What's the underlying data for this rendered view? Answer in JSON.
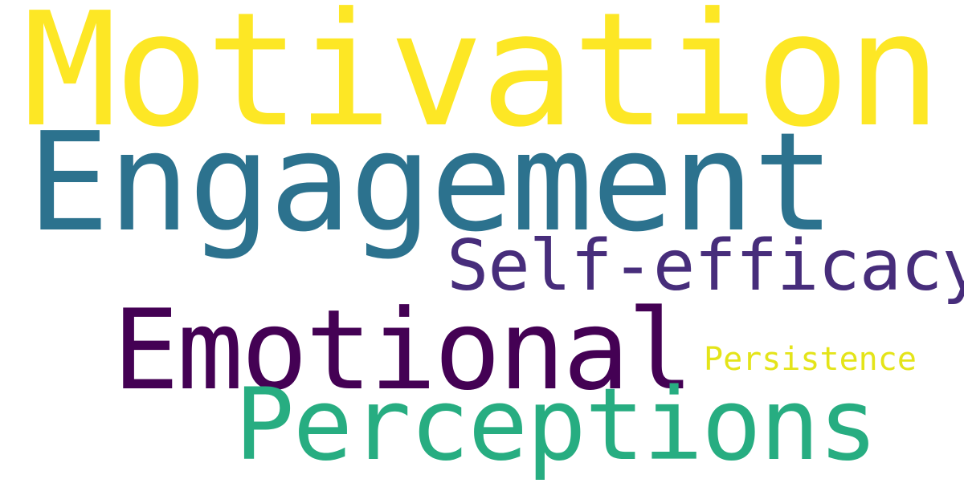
{
  "words": [
    {
      "text": "Motivation",
      "color": "#fde725"
    },
    {
      "text": "Engagement",
      "color": "#2c728e"
    },
    {
      "text": "Self-efficacy",
      "color": "#472d7b"
    },
    {
      "text": "Emotional",
      "color": "#440154"
    },
    {
      "text": "Persistence",
      "color": "#e4e419"
    },
    {
      "text": "Perceptions",
      "color": "#27ad81"
    }
  ]
}
